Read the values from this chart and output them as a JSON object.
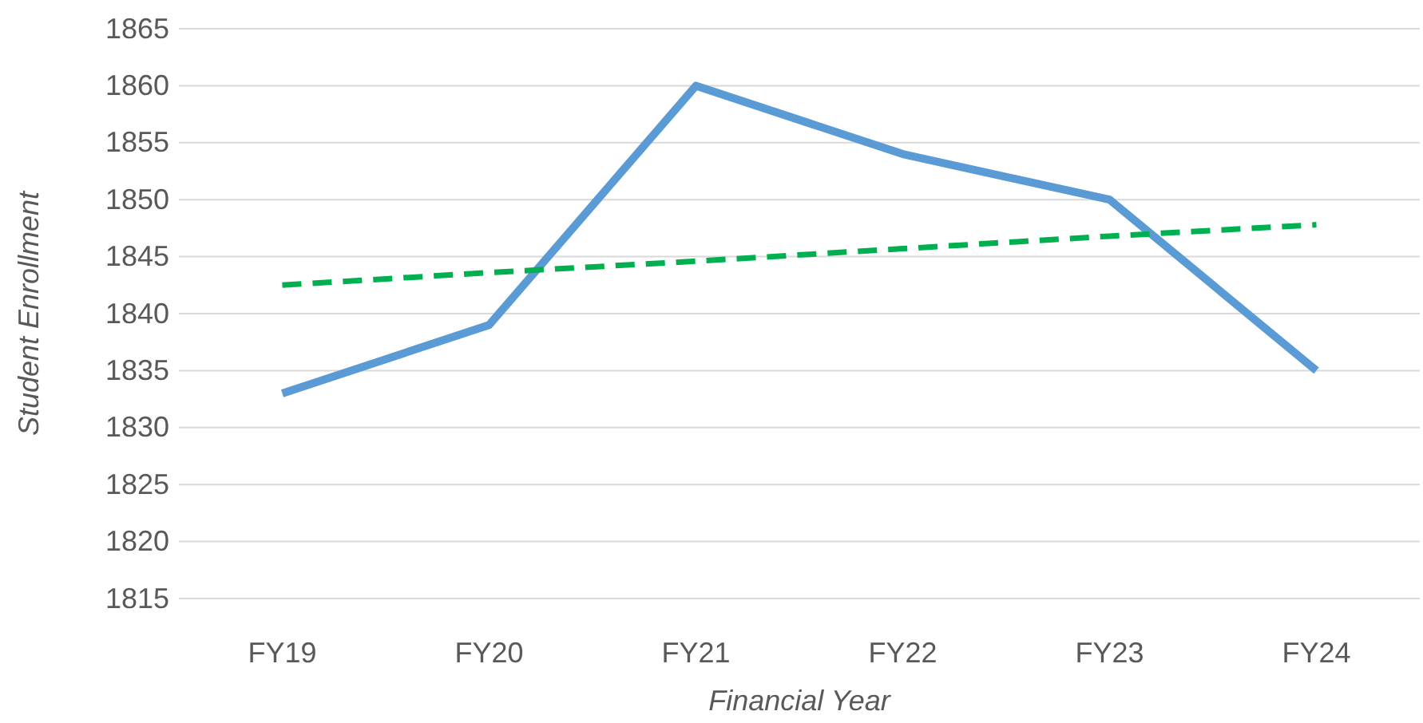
{
  "chart_data": {
    "type": "line",
    "xlabel": "Financial Year",
    "ylabel": "Student Enrollment",
    "categories": [
      "FY19",
      "FY20",
      "FY21",
      "FY22",
      "FY23",
      "FY24"
    ],
    "series": [
      {
        "color": "#5b9bd5",
        "values": [
          1833,
          1839,
          1860,
          1854,
          1850,
          1835
        ],
        "line_style": "solid"
      },
      {
        "color": "#00b050",
        "values": [
          1842.5,
          1843.6,
          1844.6,
          1845.7,
          1846.8,
          1847.8
        ],
        "line_style": "dashed"
      }
    ],
    "ylim": [
      1815,
      1865
    ],
    "yticks": [
      1815,
      1820,
      1825,
      1830,
      1835,
      1840,
      1845,
      1850,
      1855,
      1860,
      1865
    ],
    "grid": "y",
    "marker": "none"
  }
}
